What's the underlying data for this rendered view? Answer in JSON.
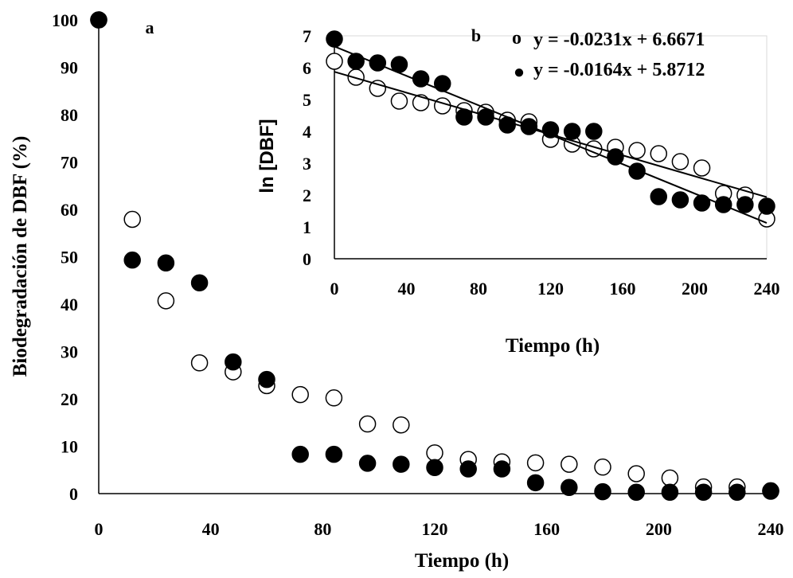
{
  "chart_data": [
    {
      "type": "scatter",
      "panel_label": "a",
      "xlabel": "Tiempo (h)",
      "ylabel": "Biodegradación de DBF  (%)",
      "xlim": [
        0,
        240
      ],
      "ylim": [
        0,
        100
      ],
      "xticks": [
        "0",
        "40",
        "80",
        "120",
        "160",
        "200",
        "240"
      ],
      "yticks": [
        "0",
        "10",
        "20",
        "30",
        "40",
        "50",
        "60",
        "70",
        "80",
        "90",
        "100"
      ],
      "grid": false,
      "series": [
        {
          "marker": "open-circle",
          "x": [
            0,
            12,
            24,
            36,
            48,
            60,
            72,
            84,
            96,
            108,
            120,
            132,
            144,
            156,
            168,
            180,
            192,
            204,
            216,
            228,
            240
          ],
          "y": [
            100,
            57.9,
            40.7,
            27.6,
            25.7,
            22.8,
            20.9,
            20.2,
            14.7,
            14.5,
            8.6,
            7.2,
            6.7,
            6.5,
            6.2,
            5.6,
            4.2,
            3.3,
            1.4,
            1.4,
            0.6
          ]
        },
        {
          "marker": "filled-circle",
          "x": [
            0,
            12,
            24,
            36,
            48,
            60,
            72,
            84,
            96,
            108,
            120,
            132,
            144,
            156,
            168,
            180,
            192,
            204,
            216,
            228,
            240
          ],
          "y": [
            100,
            49.3,
            48.7,
            44.5,
            27.8,
            24.1,
            8.3,
            8.3,
            6.4,
            6.2,
            5.5,
            5.2,
            5.2,
            2.3,
            1.3,
            0.4,
            0.3,
            0.3,
            0.3,
            0.3,
            0.5
          ]
        }
      ]
    },
    {
      "type": "scatter",
      "panel_label": "b",
      "xlabel": "Tiempo (h)",
      "ylabel": "ln [DBF]",
      "xlim": [
        0,
        240
      ],
      "ylim": [
        0,
        7
      ],
      "xticks": [
        "0",
        "40",
        "80",
        "120",
        "160",
        "200",
        "240"
      ],
      "yticks": [
        "0",
        "1",
        "2",
        "3",
        "4",
        "5",
        "6",
        "7"
      ],
      "grid": false,
      "legend_position": "top-right",
      "legend": [
        {
          "symbol": "o",
          "marker": "open-circle",
          "text": "y = -0.0231x + 6.6671"
        },
        {
          "symbol": "●",
          "marker": "filled-circle",
          "text": "y = -0.0164x + 5.8712"
        }
      ],
      "trendlines": [
        {
          "slope": -0.0231,
          "intercept": 6.6671
        },
        {
          "slope": -0.0164,
          "intercept": 5.8712
        }
      ],
      "series": [
        {
          "marker": "open-circle",
          "x": [
            0,
            12,
            24,
            36,
            48,
            60,
            72,
            84,
            96,
            108,
            120,
            132,
            144,
            156,
            168,
            180,
            192,
            204,
            216,
            228,
            240
          ],
          "y": [
            6.2,
            5.7,
            5.35,
            4.95,
            4.9,
            4.8,
            4.65,
            4.6,
            4.35,
            4.3,
            3.75,
            3.6,
            3.45,
            3.5,
            3.4,
            3.3,
            3.05,
            2.85,
            2.05,
            2.0,
            1.25
          ]
        },
        {
          "marker": "filled-circle",
          "x": [
            0,
            12,
            24,
            36,
            48,
            60,
            72,
            84,
            96,
            108,
            120,
            132,
            144,
            156,
            168,
            180,
            192,
            204,
            216,
            228,
            240
          ],
          "y": [
            6.9,
            6.2,
            6.15,
            6.1,
            5.65,
            5.5,
            4.45,
            4.45,
            4.2,
            4.15,
            4.05,
            4.0,
            4.0,
            3.2,
            2.75,
            1.95,
            1.85,
            1.75,
            1.7,
            1.7,
            1.65
          ]
        }
      ]
    }
  ]
}
